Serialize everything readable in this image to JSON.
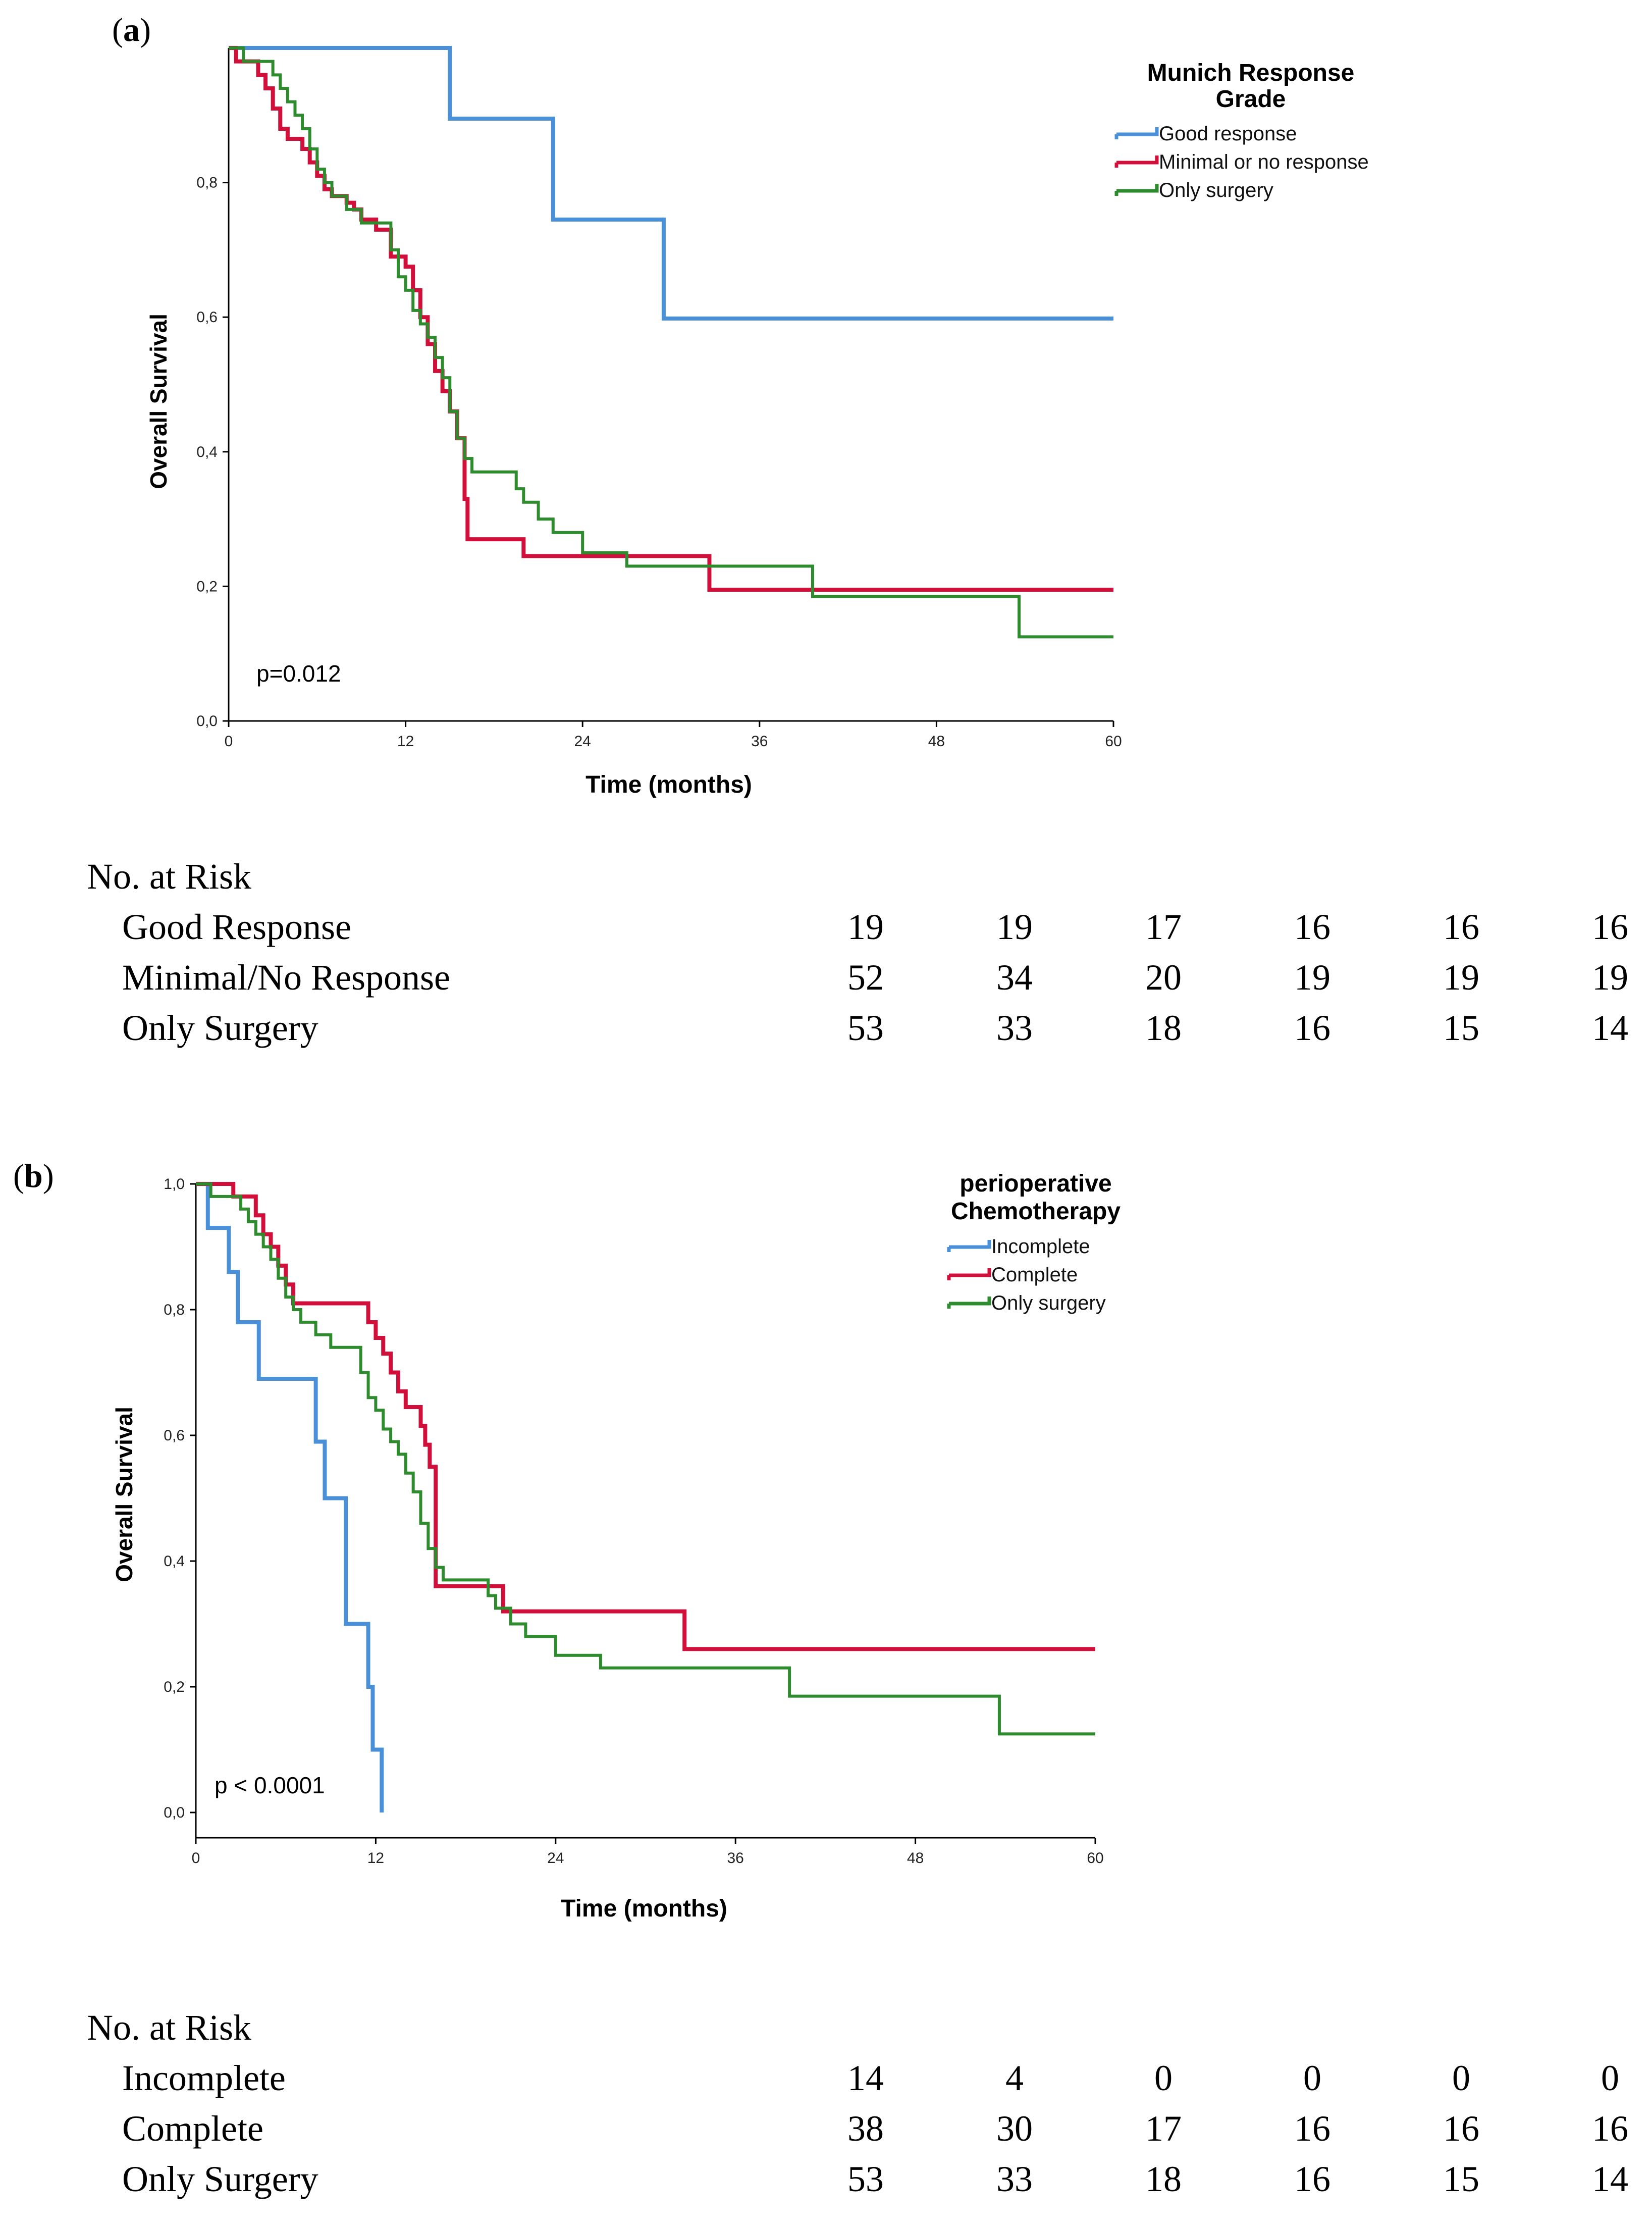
{
  "panels": [
    {
      "label_open": "(",
      "label_letter": "a",
      "label_close": ")",
      "p_value": "p=0.012",
      "risk_table": {
        "title": "No. at Risk",
        "rows": [
          {
            "name": "Good Response",
            "values": [
              "19",
              "19",
              "17",
              "16",
              "16",
              "16"
            ]
          },
          {
            "name": "Minimal/No Response",
            "values": [
              "52",
              "34",
              "20",
              "19",
              "19",
              "19"
            ]
          },
          {
            "name": "Only Surgery",
            "values": [
              "53",
              "33",
              "18",
              "16",
              "15",
              "14"
            ]
          }
        ]
      }
    },
    {
      "label_open": "(",
      "label_letter": "b",
      "label_close": ")",
      "p_value": "p < 0.0001",
      "risk_table": {
        "title": "No. at Risk",
        "rows": [
          {
            "name": "Incomplete",
            "values": [
              "14",
              "4",
              "0",
              "0",
              "0",
              "0"
            ]
          },
          {
            "name": "Complete",
            "values": [
              "38",
              "30",
              "17",
              "16",
              "16",
              "16"
            ]
          },
          {
            "name": "Only Surgery",
            "values": [
              "53",
              "33",
              "18",
              "16",
              "15",
              "14"
            ]
          }
        ]
      }
    }
  ],
  "chart_data": [
    {
      "type": "line",
      "title": "",
      "xlabel": "Time (months)",
      "ylabel": "Overall Survival",
      "xlim": [
        0,
        60
      ],
      "ylim": [
        0,
        1.0
      ],
      "xticks": [
        "0",
        "12",
        "24",
        "36",
        "48",
        "60"
      ],
      "yticks": [
        "0,0",
        "0,2",
        "0,4",
        "0,6",
        "0,8"
      ],
      "legend_title": [
        "Munich Response",
        "Grade"
      ],
      "legend_position": "top-right",
      "series": [
        {
          "name": "Good response",
          "color": "#4a90d9",
          "steps": [
            [
              0,
              1.0
            ],
            [
              15,
              0.895
            ],
            [
              22,
              0.745
            ],
            [
              29.5,
              0.598
            ],
            [
              60,
              0.598
            ]
          ]
        },
        {
          "name": "Minimal or no response",
          "color": "#d0103a",
          "steps": [
            [
              0,
              1.0
            ],
            [
              0.5,
              0.98
            ],
            [
              2,
              0.96
            ],
            [
              2.5,
              0.94
            ],
            [
              3,
              0.91
            ],
            [
              3.5,
              0.88
            ],
            [
              4,
              0.865
            ],
            [
              5,
              0.85
            ],
            [
              5.5,
              0.83
            ],
            [
              6,
              0.81
            ],
            [
              6.5,
              0.79
            ],
            [
              7,
              0.78
            ],
            [
              8,
              0.77
            ],
            [
              8.5,
              0.76
            ],
            [
              9,
              0.745
            ],
            [
              10,
              0.73
            ],
            [
              11,
              0.69
            ],
            [
              12,
              0.675
            ],
            [
              12.5,
              0.64
            ],
            [
              13,
              0.6
            ],
            [
              13.5,
              0.56
            ],
            [
              14,
              0.52
            ],
            [
              14.5,
              0.49
            ],
            [
              15,
              0.46
            ],
            [
              15.5,
              0.42
            ],
            [
              16,
              0.33
            ],
            [
              16.2,
              0.27
            ],
            [
              20,
              0.245
            ],
            [
              32.5,
              0.245
            ],
            [
              32.6,
              0.195
            ],
            [
              60,
              0.195
            ]
          ]
        },
        {
          "name": "Only surgery",
          "color": "#2e8b2e",
          "steps": [
            [
              0,
              1.0
            ],
            [
              1,
              0.98
            ],
            [
              3,
              0.96
            ],
            [
              3.5,
              0.94
            ],
            [
              4,
              0.92
            ],
            [
              4.5,
              0.9
            ],
            [
              5,
              0.88
            ],
            [
              5.5,
              0.85
            ],
            [
              6,
              0.82
            ],
            [
              6.5,
              0.8
            ],
            [
              7,
              0.78
            ],
            [
              8,
              0.76
            ],
            [
              9,
              0.74
            ],
            [
              11,
              0.7
            ],
            [
              11.5,
              0.66
            ],
            [
              12,
              0.64
            ],
            [
              12.5,
              0.61
            ],
            [
              13,
              0.59
            ],
            [
              13.5,
              0.57
            ],
            [
              14,
              0.54
            ],
            [
              14.5,
              0.51
            ],
            [
              15,
              0.46
            ],
            [
              15.5,
              0.42
            ],
            [
              16,
              0.39
            ],
            [
              16.5,
              0.37
            ],
            [
              19.5,
              0.345
            ],
            [
              20,
              0.325
            ],
            [
              21,
              0.3
            ],
            [
              22,
              0.28
            ],
            [
              24,
              0.25
            ],
            [
              27,
              0.23
            ],
            [
              32,
              0.23
            ],
            [
              39.5,
              0.23
            ],
            [
              39.6,
              0.185
            ],
            [
              53.5,
              0.185
            ],
            [
              53.6,
              0.125
            ],
            [
              60,
              0.125
            ]
          ]
        }
      ]
    },
    {
      "type": "line",
      "title": "",
      "xlabel": "Time (months)",
      "ylabel": "Overall Survival",
      "xlim": [
        0,
        60
      ],
      "ylim": [
        0,
        1.0
      ],
      "xticks": [
        "0",
        "12",
        "24",
        "36",
        "48",
        "60"
      ],
      "yticks": [
        "0,0",
        "0,2",
        "0,4",
        "0,6",
        "0,8",
        "1,0"
      ],
      "legend_title": [
        "perioperative",
        "Chemotherapy"
      ],
      "legend_position": "top-right",
      "series": [
        {
          "name": "Incomplete",
          "color": "#4a90d9",
          "steps": [
            [
              0,
              1.0
            ],
            [
              0.8,
              0.93
            ],
            [
              2,
              0.93
            ],
            [
              2.2,
              0.86
            ],
            [
              2.8,
              0.78
            ],
            [
              4,
              0.78
            ],
            [
              4.2,
              0.69
            ],
            [
              7.8,
              0.69
            ],
            [
              8,
              0.59
            ],
            [
              8.6,
              0.5
            ],
            [
              9.8,
              0.5
            ],
            [
              10,
              0.3
            ],
            [
              11.4,
              0.3
            ],
            [
              11.5,
              0.2
            ],
            [
              11.8,
              0.1
            ],
            [
              12.3,
              0.1
            ],
            [
              12.4,
              0.0
            ]
          ]
        },
        {
          "name": "Complete",
          "color": "#d0103a",
          "steps": [
            [
              0,
              1.0
            ],
            [
              2.5,
              0.98
            ],
            [
              4,
              0.95
            ],
            [
              4.5,
              0.92
            ],
            [
              5,
              0.9
            ],
            [
              5.5,
              0.87
            ],
            [
              6,
              0.84
            ],
            [
              6.5,
              0.81
            ],
            [
              11.5,
              0.78
            ],
            [
              12,
              0.755
            ],
            [
              12.5,
              0.73
            ],
            [
              13,
              0.7
            ],
            [
              13.5,
              0.67
            ],
            [
              14,
              0.645
            ],
            [
              15,
              0.615
            ],
            [
              15.3,
              0.585
            ],
            [
              15.6,
              0.55
            ],
            [
              16,
              0.36
            ],
            [
              20,
              0.36
            ],
            [
              20.5,
              0.32
            ],
            [
              32.5,
              0.32
            ],
            [
              32.6,
              0.26
            ],
            [
              60,
              0.26
            ]
          ]
        },
        {
          "name": "Only surgery",
          "color": "#2e8b2e",
          "steps": [
            [
              0,
              1.0
            ],
            [
              1,
              0.98
            ],
            [
              3,
              0.96
            ],
            [
              3.5,
              0.94
            ],
            [
              4,
              0.92
            ],
            [
              4.5,
              0.9
            ],
            [
              5,
              0.88
            ],
            [
              5.5,
              0.85
            ],
            [
              6,
              0.82
            ],
            [
              6.5,
              0.8
            ],
            [
              7,
              0.78
            ],
            [
              8,
              0.76
            ],
            [
              9,
              0.74
            ],
            [
              11,
              0.7
            ],
            [
              11.5,
              0.66
            ],
            [
              12,
              0.64
            ],
            [
              12.5,
              0.61
            ],
            [
              13,
              0.59
            ],
            [
              13.5,
              0.57
            ],
            [
              14,
              0.54
            ],
            [
              14.5,
              0.51
            ],
            [
              15,
              0.46
            ],
            [
              15.5,
              0.42
            ],
            [
              16,
              0.39
            ],
            [
              16.5,
              0.37
            ],
            [
              19.5,
              0.345
            ],
            [
              20,
              0.325
            ],
            [
              21,
              0.3
            ],
            [
              22,
              0.28
            ],
            [
              24,
              0.25
            ],
            [
              27,
              0.23
            ],
            [
              32,
              0.23
            ],
            [
              39.5,
              0.23
            ],
            [
              39.6,
              0.185
            ],
            [
              53.5,
              0.185
            ],
            [
              53.6,
              0.125
            ],
            [
              60,
              0.125
            ]
          ]
        }
      ]
    }
  ]
}
